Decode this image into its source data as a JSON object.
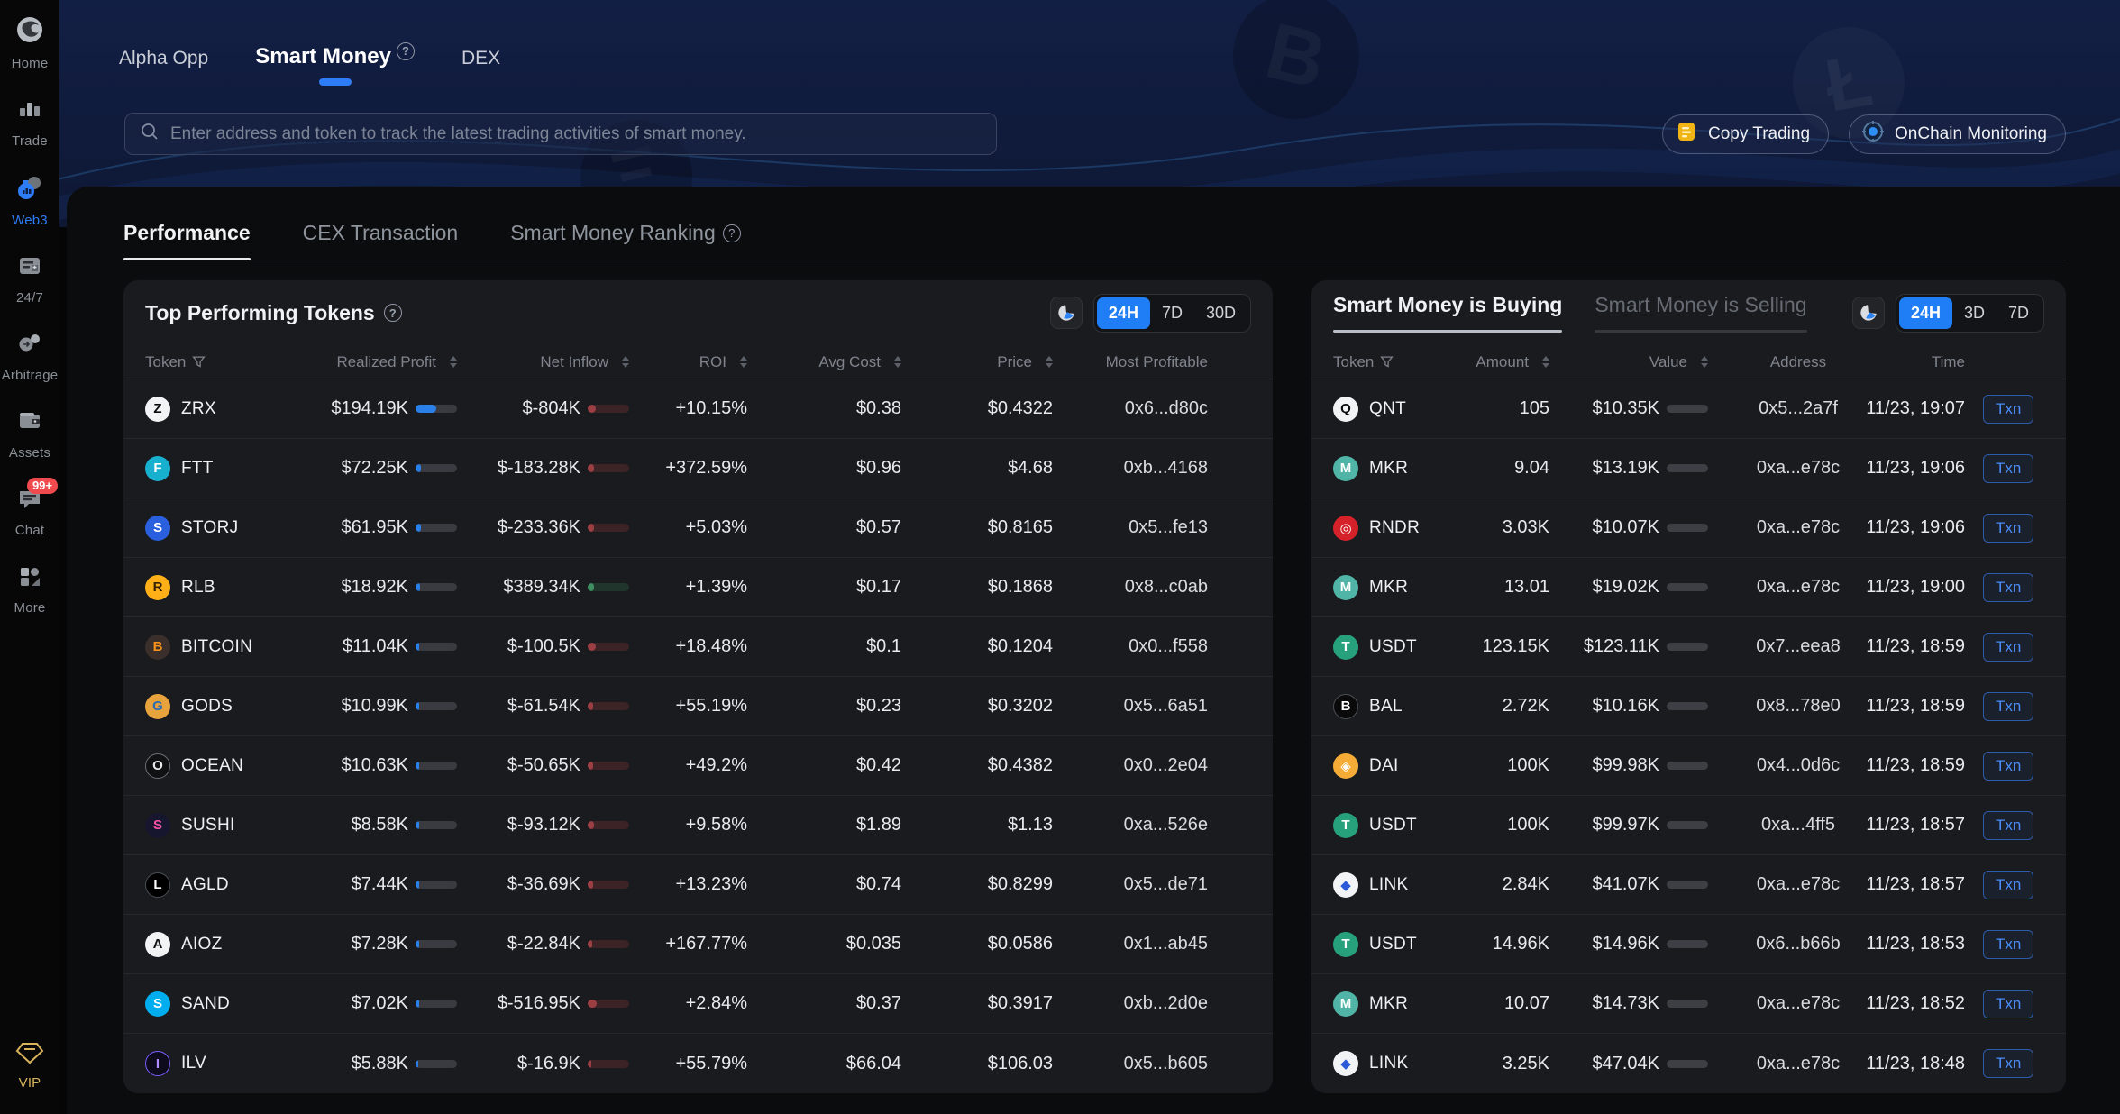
{
  "sidebar": {
    "items": [
      {
        "label": "Home"
      },
      {
        "label": "Trade"
      },
      {
        "label": "Web3",
        "active": true
      },
      {
        "label": "24/7"
      },
      {
        "label": "Arbitrage"
      },
      {
        "label": "Assets"
      },
      {
        "label": "Chat",
        "badge": "99+"
      },
      {
        "label": "More"
      }
    ],
    "vip_label": "VIP"
  },
  "topnav": {
    "items": [
      {
        "label": "Alpha Opp"
      },
      {
        "label": "Smart Money",
        "active": true,
        "has_info_icon": true
      },
      {
        "label": "DEX"
      }
    ]
  },
  "search": {
    "placeholder": "Enter address and token to track the latest trading activities of smart money."
  },
  "header_buttons": {
    "copy_trading": "Copy Trading",
    "onchain_monitoring": "OnChain Monitoring"
  },
  "tabs": {
    "items": [
      {
        "label": "Performance",
        "active": true
      },
      {
        "label": "CEX Transaction"
      },
      {
        "label": "Smart Money Ranking",
        "has_info_icon": true
      }
    ]
  },
  "left_panel": {
    "title": "Top Performing Tokens",
    "filters": [
      "24H",
      "7D",
      "30D"
    ],
    "active_filter": "24H",
    "columns": [
      "Token",
      "Realized Profit",
      "Net Inflow",
      "ROI",
      "Avg Cost",
      "Price",
      "Most Profitable"
    ],
    "rows": [
      {
        "token": "ZRX",
        "icon": {
          "bg": "#f2f3f5",
          "fg": "#0a0a0a",
          "glyph": "Z"
        },
        "profit": "$194.19K",
        "profit_bar": 0.5,
        "inflow": "$-804K",
        "inflow_bar": 0.2,
        "inflow_dir": "neg",
        "roi": "+10.15%",
        "avg_cost": "$0.38",
        "price": "$0.4322",
        "most_profitable": "0x6...d80c"
      },
      {
        "token": "FTT",
        "icon": {
          "bg": "#18b0cf",
          "fg": "#ffffff",
          "glyph": "F"
        },
        "profit": "$72.25K",
        "profit_bar": 0.13,
        "inflow": "$-183.28K",
        "inflow_bar": 0.15,
        "inflow_dir": "neg",
        "roi": "+372.59%",
        "avg_cost": "$0.96",
        "price": "$4.68",
        "most_profitable": "0xb...4168"
      },
      {
        "token": "STORJ",
        "icon": {
          "bg": "#2a5fdd",
          "fg": "#ffffff",
          "glyph": "S"
        },
        "profit": "$61.95K",
        "profit_bar": 0.12,
        "inflow": "$-233.36K",
        "inflow_bar": 0.15,
        "inflow_dir": "neg",
        "roi": "+5.03%",
        "avg_cost": "$0.57",
        "price": "$0.8165",
        "most_profitable": "0x5...fe13"
      },
      {
        "token": "RLB",
        "icon": {
          "bg": "#ffb018",
          "fg": "#332200",
          "glyph": "R"
        },
        "profit": "$18.92K",
        "profit_bar": 0.1,
        "inflow": "$389.34K",
        "inflow_bar": 0.15,
        "inflow_dir": "pos",
        "roi": "+1.39%",
        "avg_cost": "$0.17",
        "price": "$0.1868",
        "most_profitable": "0x8...c0ab"
      },
      {
        "token": "BITCOIN",
        "icon": {
          "bg": "#3a2f2a",
          "fg": "#f7931a",
          "glyph": "B"
        },
        "profit": "$11.04K",
        "profit_bar": 0.09,
        "inflow": "$-100.5K",
        "inflow_bar": 0.2,
        "inflow_dir": "neg",
        "roi": "+18.48%",
        "avg_cost": "$0.1",
        "price": "$0.1204",
        "most_profitable": "0x0...f558"
      },
      {
        "token": "GODS",
        "icon": {
          "bg": "#e8a33d",
          "fg": "#2b6cb0",
          "glyph": "G"
        },
        "profit": "$10.99K",
        "profit_bar": 0.09,
        "inflow": "$-61.54K",
        "inflow_bar": 0.13,
        "inflow_dir": "neg",
        "roi": "+55.19%",
        "avg_cost": "$0.23",
        "price": "$0.3202",
        "most_profitable": "0x5...6a51"
      },
      {
        "token": "OCEAN",
        "icon": {
          "bg": "#101113",
          "fg": "#e8e9ea",
          "glyph": "O",
          "border": "#6a6f76"
        },
        "profit": "$10.63K",
        "profit_bar": 0.09,
        "inflow": "$-50.65K",
        "inflow_bar": 0.13,
        "inflow_dir": "neg",
        "roi": "+49.2%",
        "avg_cost": "$0.42",
        "price": "$0.4382",
        "most_profitable": "0x0...2e04"
      },
      {
        "token": "SUSHI",
        "icon": {
          "bg": "#16172e",
          "fg": "#fa52a8",
          "glyph": "S"
        },
        "profit": "$8.58K",
        "profit_bar": 0.08,
        "inflow": "$-93.12K",
        "inflow_bar": 0.15,
        "inflow_dir": "neg",
        "roi": "+9.58%",
        "avg_cost": "$1.89",
        "price": "$1.13",
        "most_profitable": "0xa...526e"
      },
      {
        "token": "AGLD",
        "icon": {
          "bg": "#000000",
          "fg": "#ffffff",
          "glyph": "L",
          "border": "#4a4e54"
        },
        "profit": "$7.44K",
        "profit_bar": 0.08,
        "inflow": "$-36.69K",
        "inflow_bar": 0.13,
        "inflow_dir": "neg",
        "roi": "+13.23%",
        "avg_cost": "$0.74",
        "price": "$0.8299",
        "most_profitable": "0x5...de71"
      },
      {
        "token": "AIOZ",
        "icon": {
          "bg": "#f2f3f5",
          "fg": "#101113",
          "glyph": "A"
        },
        "profit": "$7.28K",
        "profit_bar": 0.08,
        "inflow": "$-22.84K",
        "inflow_bar": 0.1,
        "inflow_dir": "neg",
        "roi": "+167.77%",
        "avg_cost": "$0.035",
        "price": "$0.0586",
        "most_profitable": "0x1...ab45"
      },
      {
        "token": "SAND",
        "icon": {
          "bg": "#00adef",
          "fg": "#ffffff",
          "glyph": "S"
        },
        "profit": "$7.02K",
        "profit_bar": 0.08,
        "inflow": "$-516.95K",
        "inflow_bar": 0.22,
        "inflow_dir": "neg",
        "roi": "+2.84%",
        "avg_cost": "$0.37",
        "price": "$0.3917",
        "most_profitable": "0xb...2d0e"
      },
      {
        "token": "ILV",
        "icon": {
          "bg": "#0e0b1c",
          "fg": "#b18cff",
          "glyph": "I",
          "border": "#7a5cff"
        },
        "profit": "$5.88K",
        "profit_bar": 0.07,
        "inflow": "$-16.9K",
        "inflow_bar": 0.08,
        "inflow_dir": "neg",
        "roi": "+55.79%",
        "avg_cost": "$66.04",
        "price": "$106.03",
        "most_profitable": "0x5...b605"
      }
    ]
  },
  "right_panel": {
    "tabs": [
      {
        "label": "Smart Money is Buying",
        "active": true
      },
      {
        "label": "Smart Money is Selling"
      }
    ],
    "filters": [
      "24H",
      "3D",
      "7D"
    ],
    "active_filter": "24H",
    "columns": [
      "Token",
      "Amount",
      "Value",
      "Address",
      "Time"
    ],
    "txn_label": "Txn",
    "rows": [
      {
        "token": "QNT",
        "icon": {
          "bg": "#f2f3f5",
          "fg": "#0a0a0a",
          "glyph": "Q"
        },
        "amount": "105",
        "value": "$10.35K",
        "address": "0x5...2a7f",
        "time": "11/23, 19:07"
      },
      {
        "token": "MKR",
        "icon": {
          "bg": "#50b5a6",
          "fg": "#ffffff",
          "glyph": "M"
        },
        "amount": "9.04",
        "value": "$13.19K",
        "address": "0xa...e78c",
        "time": "11/23, 19:06"
      },
      {
        "token": "RNDR",
        "icon": {
          "bg": "#d5222a",
          "fg": "#ffffff",
          "glyph": "◎"
        },
        "amount": "3.03K",
        "value": "$10.07K",
        "address": "0xa...e78c",
        "time": "11/23, 19:06"
      },
      {
        "token": "MKR",
        "icon": {
          "bg": "#50b5a6",
          "fg": "#ffffff",
          "glyph": "M"
        },
        "amount": "13.01",
        "value": "$19.02K",
        "address": "0xa...e78c",
        "time": "11/23, 19:00"
      },
      {
        "token": "USDT",
        "icon": {
          "bg": "#26a17b",
          "fg": "#ffffff",
          "glyph": "T"
        },
        "amount": "123.15K",
        "value": "$123.11K",
        "address": "0x7...eea8",
        "time": "11/23, 18:59"
      },
      {
        "token": "BAL",
        "icon": {
          "bg": "#0a0a0a",
          "fg": "#ffffff",
          "glyph": "B",
          "border": "#4a4e54"
        },
        "amount": "2.72K",
        "value": "$10.16K",
        "address": "0x8...78e0",
        "time": "11/23, 18:59"
      },
      {
        "token": "DAI",
        "icon": {
          "bg": "#f5ac37",
          "fg": "#ffffff",
          "glyph": "◈"
        },
        "amount": "100K",
        "value": "$99.98K",
        "address": "0x4...0d6c",
        "time": "11/23, 18:59"
      },
      {
        "token": "USDT",
        "icon": {
          "bg": "#26a17b",
          "fg": "#ffffff",
          "glyph": "T"
        },
        "amount": "100K",
        "value": "$99.97K",
        "address": "0xa...4ff5",
        "time": "11/23, 18:57"
      },
      {
        "token": "LINK",
        "icon": {
          "bg": "#f2f3f5",
          "fg": "#2a5ada",
          "glyph": "◆"
        },
        "amount": "2.84K",
        "value": "$41.07K",
        "address": "0xa...e78c",
        "time": "11/23, 18:57"
      },
      {
        "token": "USDT",
        "icon": {
          "bg": "#26a17b",
          "fg": "#ffffff",
          "glyph": "T"
        },
        "amount": "14.96K",
        "value": "$14.96K",
        "address": "0x6...b66b",
        "time": "11/23, 18:53"
      },
      {
        "token": "MKR",
        "icon": {
          "bg": "#50b5a6",
          "fg": "#ffffff",
          "glyph": "M"
        },
        "amount": "10.07",
        "value": "$14.73K",
        "address": "0xa...e78c",
        "time": "11/23, 18:52"
      },
      {
        "token": "LINK",
        "icon": {
          "bg": "#f2f3f5",
          "fg": "#2a5ada",
          "glyph": "◆"
        },
        "amount": "3.25K",
        "value": "$47.04K",
        "address": "0xa...e78c",
        "time": "11/23, 18:48"
      }
    ]
  },
  "colors": {
    "accent_blue": "#1f7ef5",
    "txn_blue": "#4a8df8",
    "negative": "#9c3f44",
    "positive": "#3f8f63",
    "vip_gold": "#d9b35c",
    "chat_badge_red": "#ef4b4f",
    "banner_navy": "#101b3c"
  }
}
